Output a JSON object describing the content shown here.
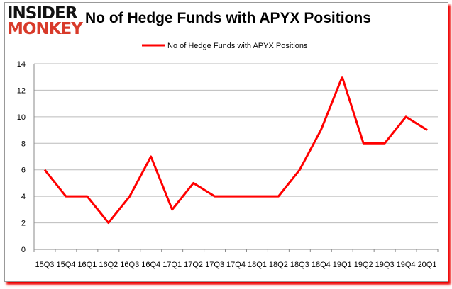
{
  "logo": {
    "line1": "INSIDER",
    "line2": "MONKEY"
  },
  "chart_data": {
    "type": "line",
    "title": "No of Hedge Funds with APYX Positions",
    "categories": [
      "15Q3",
      "15Q4",
      "16Q1",
      "16Q2",
      "16Q3",
      "16Q4",
      "17Q1",
      "17Q2",
      "17Q3",
      "17Q4",
      "18Q1",
      "18Q2",
      "18Q3",
      "18Q4",
      "19Q1",
      "19Q2",
      "19Q3",
      "19Q4",
      "20Q1"
    ],
    "series": [
      {
        "name": "No of Hedge Funds with APYX Positions",
        "color": "#ff0000",
        "values": [
          6,
          4,
          4,
          2,
          4,
          7,
          3,
          5,
          4,
          4,
          4,
          4,
          6,
          9,
          13,
          8,
          8,
          10,
          9
        ]
      }
    ],
    "ylim": [
      0,
      14
    ],
    "yticks": [
      0,
      2,
      4,
      6,
      8,
      10,
      12,
      14
    ],
    "grid": true,
    "legend": "top-center"
  }
}
